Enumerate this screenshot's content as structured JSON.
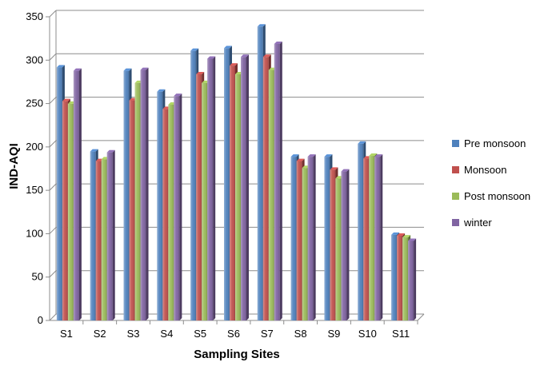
{
  "chart_data": {
    "type": "bar",
    "title": "",
    "xlabel": "Sampling Sites",
    "ylabel": "IND-AQI",
    "ylim": [
      0,
      350
    ],
    "yticks": [
      0,
      50,
      100,
      150,
      200,
      250,
      300,
      350
    ],
    "grid": true,
    "legend_position": "right",
    "categories": [
      "S1",
      "S2",
      "S3",
      "S4",
      "S5",
      "S6",
      "S7",
      "S8",
      "S9",
      "S10",
      "S11"
    ],
    "series": [
      {
        "name": "Pre monsoon",
        "color": "#4F81BD",
        "values": [
          288,
          191,
          284,
          260,
          307,
          310,
          335,
          185,
          185,
          200,
          95
        ]
      },
      {
        "name": "Monsoon",
        "color": "#C0504D",
        "values": [
          249,
          180,
          250,
          240,
          280,
          290,
          300,
          180,
          170,
          183,
          94
        ]
      },
      {
        "name": "Post monsoon",
        "color": "#9BBB59",
        "values": [
          246,
          182,
          270,
          245,
          270,
          280,
          285,
          172,
          160,
          186,
          92
        ]
      },
      {
        "name": "winter",
        "color": "#8064A2",
        "values": [
          284,
          190,
          285,
          255,
          298,
          300,
          315,
          185,
          168,
          185,
          88
        ]
      }
    ]
  }
}
